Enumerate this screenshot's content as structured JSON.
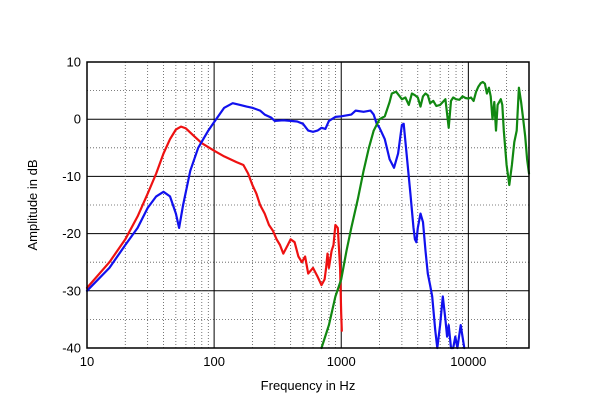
{
  "chart_data": {
    "type": "line",
    "xlabel": "Frequency in Hz",
    "ylabel": "Amplitude in dB",
    "x_scale": "log",
    "xlim": [
      10,
      30000
    ],
    "ylim": [
      -40,
      10
    ],
    "grid": true,
    "x_ticks": [
      10,
      100,
      1000,
      10000
    ],
    "x_tick_labels": [
      "10",
      "100",
      "1000",
      "10000"
    ],
    "y_ticks": [
      10,
      0,
      -10,
      -20,
      -30,
      -40
    ],
    "y_tick_labels": [
      "10",
      "0",
      "-10",
      "-20",
      "-30",
      "-40"
    ],
    "colors": {
      "red": "#ee1111",
      "blue": "#1111ee",
      "green": "#118811"
    },
    "series": [
      {
        "color": "#ee1111",
        "points": [
          [
            10,
            -29.5
          ],
          [
            15,
            -25
          ],
          [
            20,
            -21
          ],
          [
            25,
            -17
          ],
          [
            30,
            -13
          ],
          [
            35,
            -9.5
          ],
          [
            40,
            -6
          ],
          [
            45,
            -3.5
          ],
          [
            50,
            -1.8
          ],
          [
            55,
            -1.3
          ],
          [
            60,
            -1.6
          ],
          [
            70,
            -3
          ],
          [
            80,
            -4.2
          ],
          [
            100,
            -5.5
          ],
          [
            120,
            -6.5
          ],
          [
            150,
            -7.5
          ],
          [
            170,
            -8
          ],
          [
            185,
            -9.5
          ],
          [
            200,
            -11.5
          ],
          [
            215,
            -13
          ],
          [
            230,
            -15
          ],
          [
            250,
            -16.5
          ],
          [
            270,
            -18.5
          ],
          [
            290,
            -19.5
          ],
          [
            310,
            -21
          ],
          [
            330,
            -22
          ],
          [
            350,
            -23.5
          ],
          [
            380,
            -22
          ],
          [
            400,
            -21
          ],
          [
            430,
            -21.5
          ],
          [
            460,
            -24
          ],
          [
            490,
            -25
          ],
          [
            520,
            -24
          ],
          [
            550,
            -27
          ],
          [
            600,
            -26
          ],
          [
            650,
            -27.5
          ],
          [
            700,
            -29
          ],
          [
            740,
            -28
          ],
          [
            760,
            -26
          ],
          [
            780,
            -23.5
          ],
          [
            800,
            -26
          ],
          [
            840,
            -23
          ],
          [
            870,
            -22
          ],
          [
            900,
            -18.5
          ],
          [
            940,
            -19
          ],
          [
            980,
            -26
          ],
          [
            1000,
            -34
          ],
          [
            1010,
            -37
          ]
        ]
      },
      {
        "color": "#1111ee",
        "points": [
          [
            10,
            -30
          ],
          [
            15,
            -26
          ],
          [
            20,
            -22
          ],
          [
            25,
            -19
          ],
          [
            30,
            -15.5
          ],
          [
            35,
            -13.5
          ],
          [
            40,
            -12.7
          ],
          [
            45,
            -13.5
          ],
          [
            50,
            -16.5
          ],
          [
            53,
            -19
          ],
          [
            57,
            -15
          ],
          [
            65,
            -9
          ],
          [
            75,
            -5
          ],
          [
            90,
            -2
          ],
          [
            100,
            -0.5
          ],
          [
            120,
            2
          ],
          [
            140,
            2.8
          ],
          [
            160,
            2.5
          ],
          [
            180,
            2.2
          ],
          [
            200,
            2
          ],
          [
            230,
            1.5
          ],
          [
            250,
            0.8
          ],
          [
            280,
            0.3
          ],
          [
            300,
            -0.3
          ],
          [
            350,
            -0.2
          ],
          [
            400,
            -0.3
          ],
          [
            450,
            -0.4
          ],
          [
            500,
            -0.8
          ],
          [
            550,
            -2
          ],
          [
            600,
            -2.2
          ],
          [
            650,
            -2
          ],
          [
            700,
            -1.5
          ],
          [
            750,
            -1.7
          ],
          [
            800,
            -0.3
          ],
          [
            900,
            0.4
          ],
          [
            1000,
            0.5
          ],
          [
            1200,
            0.8
          ],
          [
            1300,
            1.5
          ],
          [
            1500,
            1.3
          ],
          [
            1700,
            1.5
          ],
          [
            1800,
            0.8
          ],
          [
            1900,
            -0.8
          ],
          [
            2000,
            -1.5
          ],
          [
            2200,
            -3.5
          ],
          [
            2400,
            -7
          ],
          [
            2600,
            -8.5
          ],
          [
            2800,
            -6
          ],
          [
            3000,
            -1
          ],
          [
            3100,
            -0.8
          ],
          [
            3300,
            -7
          ],
          [
            3500,
            -13
          ],
          [
            3700,
            -19
          ],
          [
            3800,
            -21
          ],
          [
            3900,
            -21.5
          ],
          [
            4000,
            -19
          ],
          [
            4200,
            -16.5
          ],
          [
            4400,
            -18
          ],
          [
            4600,
            -23
          ],
          [
            4800,
            -27
          ],
          [
            5000,
            -29
          ],
          [
            5200,
            -31
          ],
          [
            5500,
            -37
          ],
          [
            5700,
            -40
          ],
          [
            6000,
            -36
          ],
          [
            6300,
            -31
          ],
          [
            6600,
            -35
          ],
          [
            6800,
            -38
          ],
          [
            7000,
            -36
          ],
          [
            7300,
            -40
          ],
          [
            7600,
            -40
          ],
          [
            7900,
            -38
          ],
          [
            8200,
            -40
          ],
          [
            8700,
            -36
          ],
          [
            9000,
            -38
          ],
          [
            9300,
            -40
          ]
        ]
      },
      {
        "color": "#118811",
        "points": [
          [
            700,
            -40
          ],
          [
            800,
            -36
          ],
          [
            900,
            -31
          ],
          [
            1000,
            -28
          ],
          [
            1100,
            -23
          ],
          [
            1200,
            -19
          ],
          [
            1350,
            -14
          ],
          [
            1500,
            -9
          ],
          [
            1650,
            -5
          ],
          [
            1800,
            -2
          ],
          [
            2000,
            0
          ],
          [
            2200,
            0.5
          ],
          [
            2400,
            3
          ],
          [
            2500,
            4.5
          ],
          [
            2700,
            4.8
          ],
          [
            3000,
            3.5
          ],
          [
            3200,
            3.8
          ],
          [
            3400,
            2.5
          ],
          [
            3600,
            4.5
          ],
          [
            3800,
            4.2
          ],
          [
            4000,
            3.8
          ],
          [
            4200,
            2.2
          ],
          [
            4400,
            4
          ],
          [
            4600,
            4.5
          ],
          [
            4800,
            4.2
          ],
          [
            5000,
            2.8
          ],
          [
            5300,
            3.2
          ],
          [
            5600,
            2.3
          ],
          [
            6000,
            2.5
          ],
          [
            6300,
            3
          ],
          [
            6600,
            3.5
          ],
          [
            7000,
            -1.5
          ],
          [
            7300,
            3.2
          ],
          [
            7600,
            3.8
          ],
          [
            8000,
            3.5
          ],
          [
            8500,
            3.4
          ],
          [
            9000,
            4
          ],
          [
            9500,
            3.7
          ],
          [
            10000,
            3.6
          ],
          [
            10500,
            3.8
          ],
          [
            11000,
            3.2
          ],
          [
            11500,
            4.8
          ],
          [
            12000,
            5.7
          ],
          [
            12500,
            6.3
          ],
          [
            13000,
            6.5
          ],
          [
            13500,
            6.2
          ],
          [
            14000,
            4.5
          ],
          [
            14500,
            5.5
          ],
          [
            15000,
            4
          ],
          [
            15500,
            0
          ],
          [
            16000,
            3
          ],
          [
            16500,
            -2
          ],
          [
            17000,
            2.5
          ],
          [
            17500,
            3
          ],
          [
            18000,
            3.5
          ],
          [
            18500,
            2.5
          ],
          [
            19000,
            -2
          ],
          [
            20000,
            -8
          ],
          [
            21000,
            -11.5
          ],
          [
            22000,
            -8
          ],
          [
            23000,
            -4
          ],
          [
            24000,
            -2
          ],
          [
            25000,
            5.5
          ],
          [
            26000,
            3
          ],
          [
            27000,
            0
          ],
          [
            28000,
            -3
          ],
          [
            29000,
            -7
          ],
          [
            30000,
            -9.5
          ]
        ]
      }
    ]
  }
}
